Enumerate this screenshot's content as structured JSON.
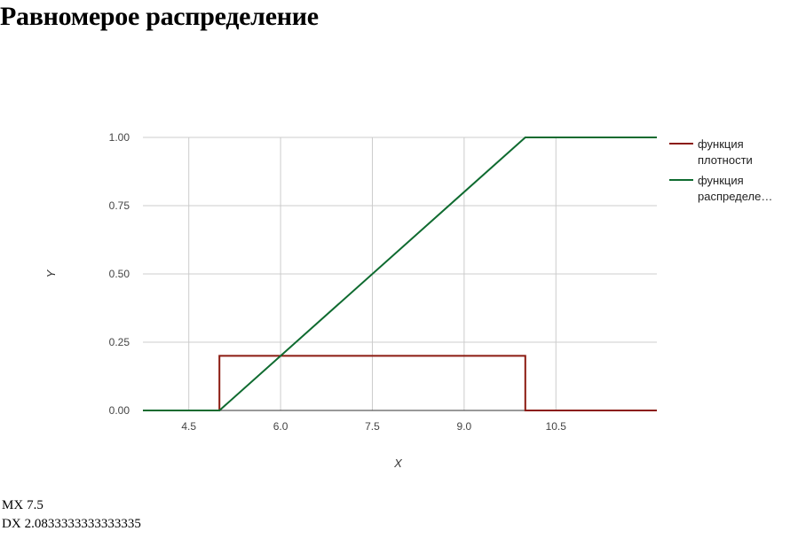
{
  "title": "Равномерое распределение",
  "chart_data": {
    "type": "line",
    "xlabel": "X",
    "ylabel": "Y",
    "xlim": [
      3.75,
      12.15
    ],
    "ylim": [
      0,
      1
    ],
    "x_ticks": [
      4.5,
      6.0,
      7.5,
      9.0,
      10.5
    ],
    "x_tick_labels": [
      "4.5",
      "6.0",
      "7.5",
      "9.0",
      "10.5"
    ],
    "y_ticks": [
      0,
      0.25,
      0.5,
      0.75,
      1.0
    ],
    "y_tick_labels": [
      "0.00",
      "0.25",
      "0.50",
      "0.75",
      "1.00"
    ],
    "grid": true,
    "legend_position": "right",
    "series": [
      {
        "name": "функция плотности",
        "legend_lines": [
          "функция",
          "плотности"
        ],
        "color": "#8b1a10",
        "points": [
          [
            3.75,
            0
          ],
          [
            5.0,
            0
          ],
          [
            5.0,
            0.2
          ],
          [
            10.0,
            0.2
          ],
          [
            10.0,
            0
          ],
          [
            12.15,
            0
          ]
        ]
      },
      {
        "name": "функция распределения",
        "legend_lines": [
          "функция",
          "распределе…"
        ],
        "color": "#0f6b30",
        "points": [
          [
            3.75,
            0
          ],
          [
            5.0,
            0
          ],
          [
            10.0,
            1.0
          ],
          [
            12.15,
            1.0
          ]
        ]
      }
    ]
  },
  "stats": {
    "mx_label": "MX",
    "mx_value": "7.5",
    "dx_label": "DX",
    "dx_value": "2.0833333333333335"
  }
}
